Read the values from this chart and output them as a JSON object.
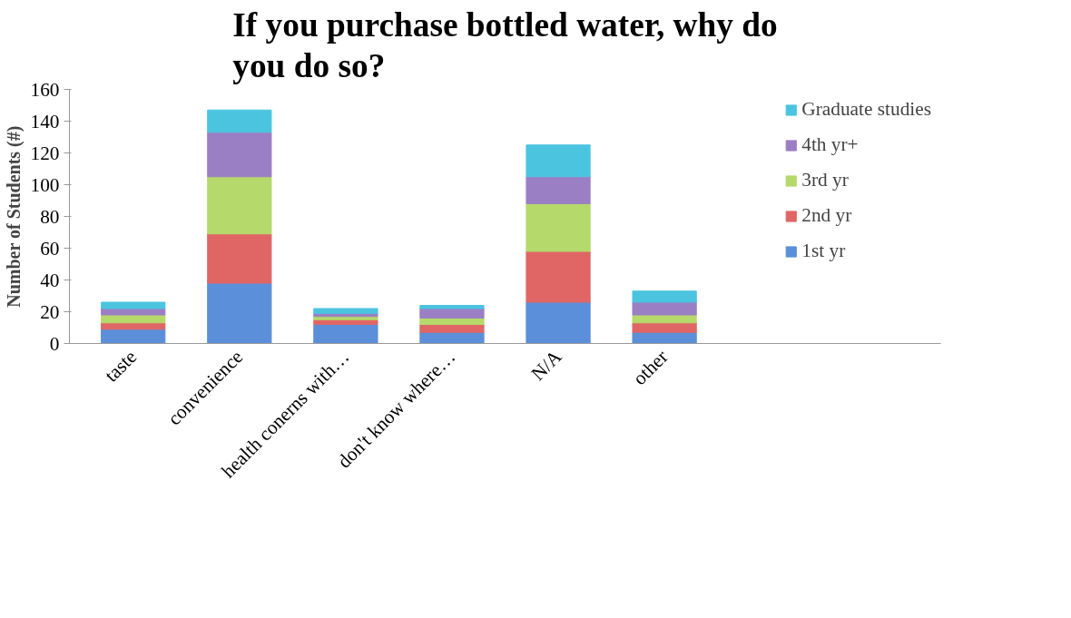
{
  "chart_data": {
    "type": "bar",
    "title": "If you purchase bottled water, why do you do so?",
    "ylabel": "Number of Students (#)",
    "categories": [
      "taste",
      "convenience",
      "health conerns with…",
      "don't know where…",
      "N/A",
      "other"
    ],
    "stacked": true,
    "series": [
      {
        "name": "1st yr",
        "color": "#5b8fd9",
        "values": [
          9,
          38,
          12,
          7,
          26,
          7
        ]
      },
      {
        "name": "2nd yr",
        "color": "#e06666",
        "values": [
          4,
          31,
          3,
          5,
          32,
          6
        ]
      },
      {
        "name": "3rd yr",
        "color": "#b5d96a",
        "values": [
          5,
          36,
          2,
          4,
          30,
          5
        ]
      },
      {
        "name": "4th yr+",
        "color": "#9b7fc4",
        "values": [
          4,
          28,
          2,
          6,
          17,
          8
        ]
      },
      {
        "name": "Graduate studies",
        "color": "#4bc4e0",
        "values": [
          4,
          14,
          3,
          2,
          20,
          7
        ]
      }
    ],
    "ylim": [
      0,
      160
    ],
    "yticks": [
      0,
      20,
      40,
      60,
      80,
      100,
      120,
      140,
      160
    ],
    "grid": false,
    "legend": "right"
  }
}
